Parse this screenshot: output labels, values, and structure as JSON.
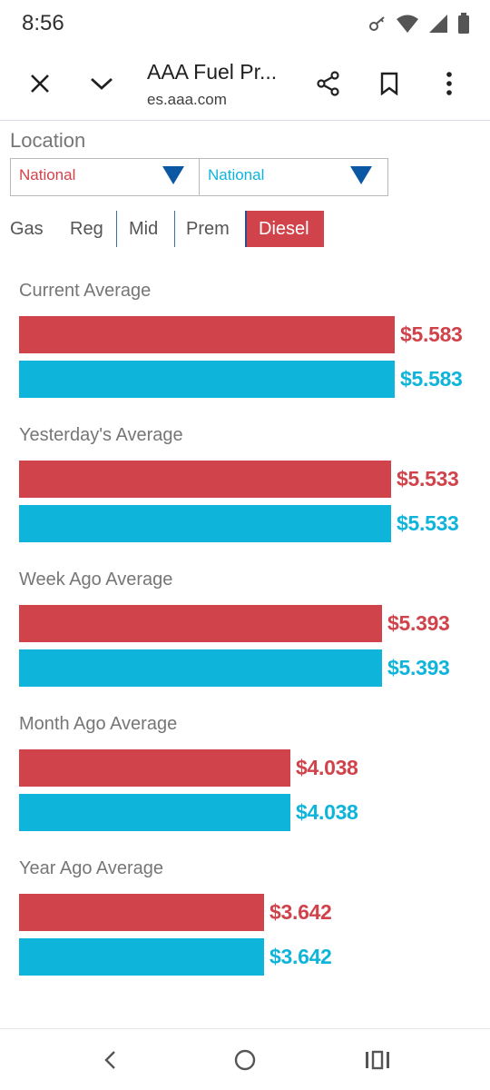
{
  "status_bar": {
    "time": "8:56"
  },
  "browser": {
    "title": "AAA Fuel Pr...",
    "url": "es.aaa.com"
  },
  "location": {
    "label": "Location",
    "select_left": "National",
    "select_right": "National"
  },
  "fuel_tabs": {
    "label": "Gas",
    "tabs": [
      "Reg",
      "Mid",
      "Prem",
      "Diesel"
    ],
    "active": "Diesel"
  },
  "colors": {
    "red": "#d0434b",
    "blue": "#0fb4db",
    "arrow": "#0b57a4"
  },
  "chart_data": {
    "type": "bar",
    "orientation": "horizontal",
    "categories": [
      "Current Average",
      "Yesterday's Average",
      "Week Ago Average",
      "Month Ago Average",
      "Year Ago Average"
    ],
    "series": [
      {
        "name": "National",
        "color": "#d0434b",
        "values": [
          5.583,
          5.533,
          5.393,
          4.038,
          3.642
        ],
        "labels": [
          "$5.583",
          "$5.533",
          "$5.393",
          "$4.038",
          "$3.642"
        ]
      },
      {
        "name": "National",
        "color": "#0fb4db",
        "values": [
          5.583,
          5.533,
          5.393,
          4.038,
          3.642
        ],
        "labels": [
          "$5.583",
          "$5.533",
          "$5.393",
          "$4.038",
          "$3.642"
        ]
      }
    ]
  }
}
